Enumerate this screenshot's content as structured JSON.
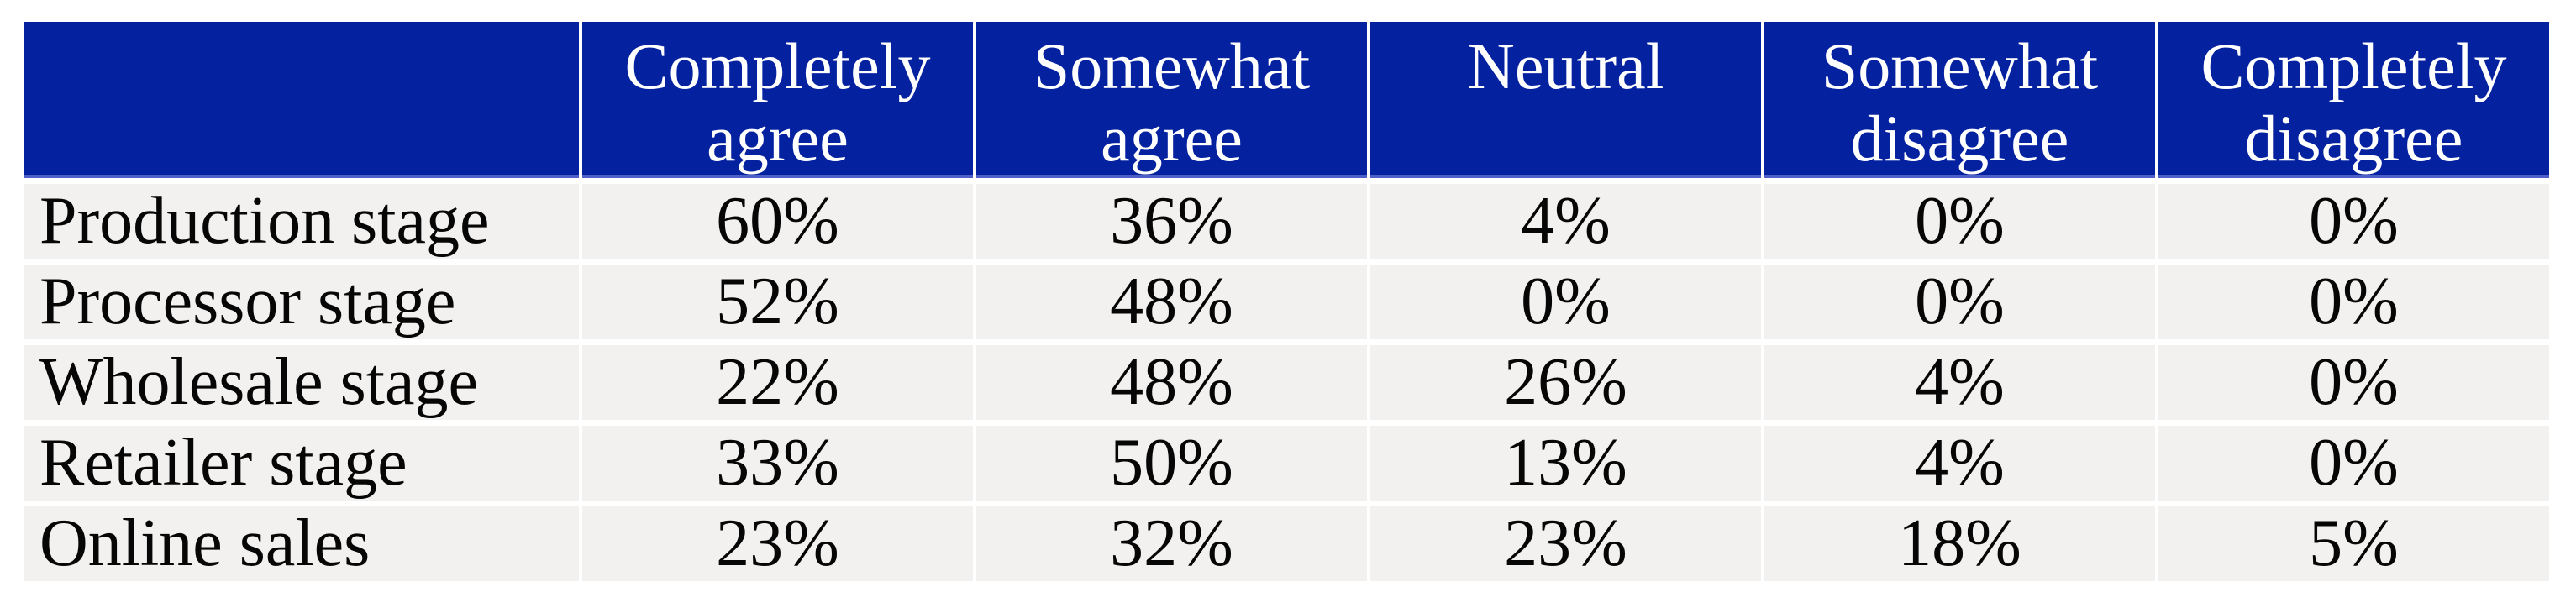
{
  "colors": {
    "header_bg": "#0421a0",
    "header_text": "#ffffff",
    "header_bottom_line": "#4f5fc8",
    "row_bg": "#f2f1ef",
    "gridline": "#ffffff",
    "body_text": "#060606"
  },
  "table": {
    "column_headers": [
      "Completely agree",
      "Somewhat agree",
      "Neutral",
      "Somewhat disagree",
      "Completely disagree"
    ],
    "rows": [
      {
        "label": "Production stage",
        "values": [
          "60%",
          "36%",
          "4%",
          "0%",
          "0%"
        ]
      },
      {
        "label": "Processor stage",
        "values": [
          "52%",
          "48%",
          "0%",
          "0%",
          "0%"
        ]
      },
      {
        "label": "Wholesale stage",
        "values": [
          "22%",
          "48%",
          "26%",
          "4%",
          "0%"
        ]
      },
      {
        "label": "Retailer stage",
        "values": [
          "33%",
          "50%",
          "13%",
          "4%",
          "0%"
        ]
      },
      {
        "label": "Online sales",
        "values": [
          "23%",
          "32%",
          "23%",
          "18%",
          "5%"
        ]
      }
    ]
  },
  "chart_data": {
    "type": "table",
    "title": "",
    "columns": [
      "",
      "Completely agree",
      "Somewhat agree",
      "Neutral",
      "Somewhat disagree",
      "Completely disagree"
    ],
    "row_labels": [
      "Production stage",
      "Processor stage",
      "Wholesale stage",
      "Retailer stage",
      "Online sales"
    ],
    "values_percent": [
      [
        60,
        36,
        4,
        0,
        0
      ],
      [
        52,
        48,
        0,
        0,
        0
      ],
      [
        22,
        48,
        26,
        4,
        0
      ],
      [
        33,
        50,
        13,
        4,
        0
      ],
      [
        23,
        32,
        23,
        18,
        5
      ]
    ]
  }
}
